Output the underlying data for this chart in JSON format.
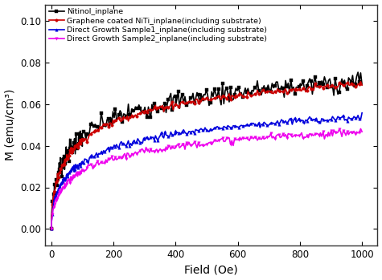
{
  "title": "",
  "xlabel": "Field (Oe)",
  "ylabel": "M (emu/cm³)",
  "xlim": [
    -20,
    1050
  ],
  "ylim": [
    -0.008,
    0.108
  ],
  "xticks": [
    0,
    200,
    400,
    600,
    800,
    1000
  ],
  "yticks": [
    0.0,
    0.02,
    0.04,
    0.06,
    0.08,
    0.1
  ],
  "series": [
    {
      "label": "Nitinol_inplane",
      "color": "#000000",
      "marker": "s",
      "M_sat": 0.093,
      "b": 120.0,
      "noise": 0.0025
    },
    {
      "label": "Graphene coated NiTi_inplane(including substrate)",
      "color": "#cc0000",
      "marker": "o",
      "M_sat": 0.092,
      "b": 130.0,
      "noise": 0.0008
    },
    {
      "label": "Direct Growth Sample1_inplane(including substrate)",
      "color": "#0000dd",
      "marker": "^",
      "M_sat": 0.073,
      "b": 155.0,
      "noise": 0.0008
    },
    {
      "label": "Direct Growth Sample2_inplane(including substrate)",
      "color": "#ee00ee",
      "marker": "v",
      "M_sat": 0.064,
      "b": 165.0,
      "noise": 0.0008
    }
  ],
  "background_color": "#ffffff",
  "legend_fontsize": 6.8,
  "axis_fontsize": 10,
  "tick_fontsize": 8.5,
  "linewidth": 1.2,
  "marker_size": 2.5,
  "n_points": 300,
  "markevery": 3
}
